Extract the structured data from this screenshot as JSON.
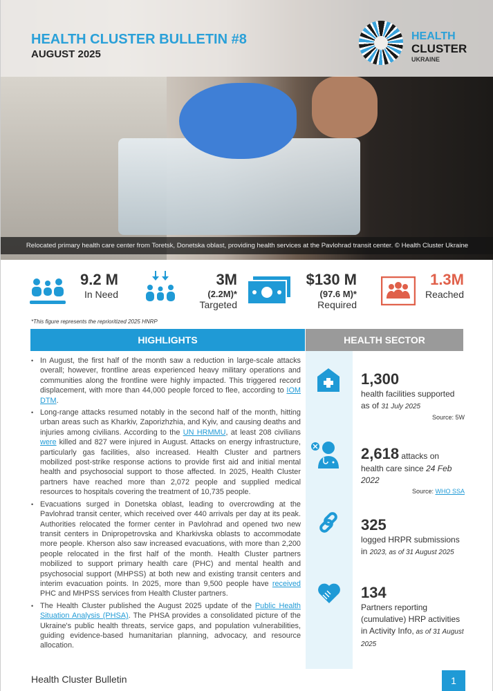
{
  "header": {
    "title": "HEALTH CLUSTER BULLETIN #8",
    "subtitle": "AUGUST 2025",
    "logo": {
      "line1": "HEALTH",
      "line2": "CLUSTER",
      "line3": "UKRAINE"
    },
    "photo_caption": "Relocated primary health care center from Toretsk, Donetska oblast, providing health services at the Pavlohrad transit center. © Health Cluster Ukraine"
  },
  "stats": [
    {
      "value": "9.2 M",
      "label": "In Need",
      "icon": "people-icon"
    },
    {
      "value": "3M",
      "sub": "(2.2M)*",
      "label": "Targeted",
      "icon": "target-people-icon"
    },
    {
      "value": "$130 M",
      "sub": "(97.6 M)*",
      "label": "Required",
      "icon": "money-icon"
    },
    {
      "value": "1.3M",
      "label": "Reached",
      "icon": "group-reached-icon",
      "color": "#e0604a"
    }
  ],
  "footnote": "*This figure represents the reprioritized 2025 HNRP",
  "sections": {
    "highlights": "HIGHLIGHTS",
    "health_sector": "HEALTH SECTOR"
  },
  "highlights": [
    {
      "t1": "In August, the first half of the month saw a reduction in large-scale attacks overall; however, frontline areas experienced heavy military operations and communities along the frontline were highly impacted. This triggered record displacement, with more than 44,000 people forced to flee, according to ",
      "link1": "IOM DTM",
      "t2": "."
    },
    {
      "t1": "Long-range attacks resumed notably in the second half of the month, hitting urban areas such as Kharkiv, Zaporizhzhia, and Kyiv, and causing deaths and injuries among civilians. According to the ",
      "link1": "UN HRMMU",
      "t2": ", at least 208 civilians ",
      "link2": "were",
      "t3": " killed and 827 were injured in August. Attacks on energy infrastructure, particularly gas facilities, also increased. Health Cluster and partners mobilized post-strike response actions to provide first aid and initial mental health and psychosocial support to those affected. In 2025, Health Cluster partners have reached more than 2,072 people and supplied medical resources to hospitals covering the treatment of 10,735 people."
    },
    {
      "t1": "Evacuations surged in Donetska oblast, leading to overcrowding at the Pavlohrad transit center, which received over 440 arrivals per day at its peak. Authorities relocated the former center in Pavlohrad and opened two new transit centers in Dnipropetrovska and Kharkivska oblasts to accommodate more people. Kherson also saw increased evacuations, with more than 2,200 people relocated in the first half of the month. Health Cluster partners mobilized to support primary health care (PHC) and mental health and psychosocial support (MHPSS) at both new and existing transit centers and interim evacuation points. In 2025, more than 9,500 people have ",
      "link1": "received",
      "t2": " PHC and MHPSS services from Health Cluster partners."
    },
    {
      "t1": "The Health Cluster published the August 2025 update of the ",
      "link1": "Public Health Situation Analysis (PHSA)",
      "t2": ". The PHSA provides a consolidated picture of the Ukraine's public health threats, service gaps, and population vulnerabilities, guiding evidence-based humanitarian planning, advocacy, and resource allocation."
    }
  ],
  "health_sector": [
    {
      "value": "1,300",
      "desc": "health facilities supported as of ",
      "date": "31 July 2025",
      "source": "Source: 5W",
      "icon": "health-facility-icon"
    },
    {
      "value": "2,618",
      "inline": " attacks on",
      "desc": "health care since ",
      "date": "24 Feb 2022",
      "source_label": "Source: ",
      "source_link": "WHO SSA",
      "icon": "doctor-attack-icon"
    },
    {
      "value": "325",
      "desc": "logged HRPR submissions in ",
      "date": "2023, as of 31 August 2025",
      "icon": "link-icon"
    },
    {
      "value": "134",
      "desc": "Partners reporting (cumulative) HRP activities in Activity Info,",
      "date": " as of 31 August 2025",
      "icon": "handshake-heart-icon"
    }
  ],
  "footer": {
    "label": "Health Cluster Bulletin",
    "page": "1"
  },
  "colors": {
    "accent": "#1f9ad6",
    "gray": "#9a9a9a",
    "reached": "#e0604a",
    "strip": "#e6f4fa"
  }
}
